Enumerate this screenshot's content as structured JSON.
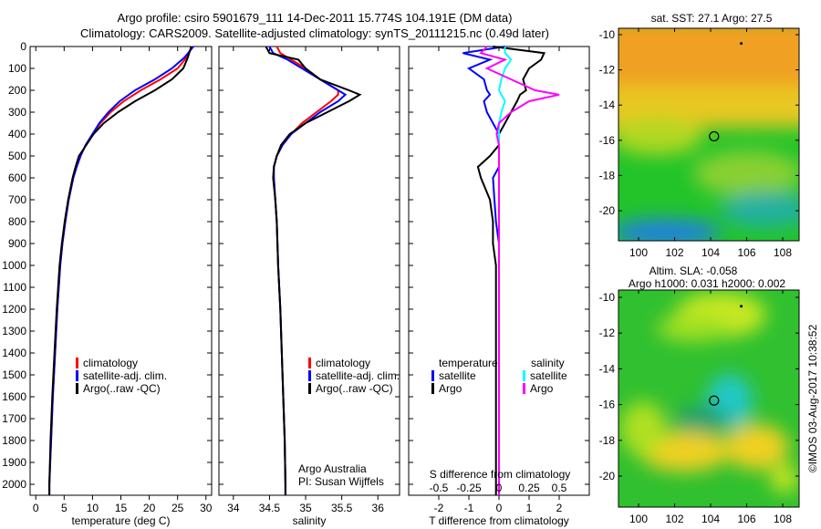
{
  "title_line1": "Argo profile: csiro 5901679_111 14-Dec-2011 15.774S 104.191E (DM data)",
  "title_line2": "Climatology: CARS2009. Satellite-adjusted climatology: synTS_20111215.nc (0.49d later)",
  "colors": {
    "climatology": "#ff0000",
    "satellite": "#0000ff",
    "argo": "#000000",
    "sal_satellite": "#00ffff",
    "sal_argo": "#ff00ff"
  },
  "chart_data": [
    {
      "type": "line",
      "xlabel": "temperature (deg C)",
      "ylabel": "depth",
      "xlim": [
        -1,
        31
      ],
      "ylim": [
        2050,
        0
      ],
      "xticks": [
        "0",
        "5",
        "10",
        "15",
        "20",
        "25",
        "30"
      ],
      "xtick_values": [
        0,
        5,
        10,
        15,
        20,
        25,
        30
      ],
      "yticks": [
        "0",
        "100",
        "200",
        "300",
        "400",
        "500",
        "600",
        "700",
        "800",
        "900",
        "1000",
        "1100",
        "1200",
        "1300",
        "1400",
        "1500",
        "1600",
        "1700",
        "1800",
        "1900",
        "2000"
      ],
      "legend": [
        "climatology",
        "satellite-adj. clim.",
        "Argo(..raw -QC)"
      ],
      "depth": [
        0,
        50,
        100,
        150,
        200,
        250,
        300,
        350,
        400,
        450,
        500,
        550,
        600,
        700,
        800,
        900,
        1000,
        1200,
        1400,
        1600,
        1800,
        2000,
        2050
      ],
      "series": [
        {
          "name": "climatology",
          "color": "#ff0000",
          "values": [
            27.6,
            26.6,
            25,
            22,
            18.5,
            15.5,
            13.2,
            11.4,
            10,
            8.8,
            7.9,
            7.2,
            6.6,
            5.8,
            5.2,
            4.7,
            4.3,
            3.8,
            3.4,
            3.0,
            2.7,
            2.4,
            2.4
          ]
        },
        {
          "name": "satellite-adj. clim.",
          "color": "#0000ff",
          "values": [
            27.8,
            26.2,
            24,
            21,
            17.5,
            14.8,
            12.8,
            11.2,
            10,
            8.8,
            7.9,
            7.2,
            6.6,
            5.8,
            5.2,
            4.7,
            4.3,
            3.8,
            3.4,
            3.0,
            2.7,
            2.4,
            2.4
          ]
        },
        {
          "name": "Argo(..raw -QC)",
          "color": "#000000",
          "values": [
            27.4,
            26.8,
            26,
            24,
            21,
            17.5,
            14.5,
            12,
            10.2,
            8.9,
            7.6,
            7.0,
            6.5,
            5.7,
            5.1,
            4.6,
            4.2,
            3.7,
            3.3,
            2.9,
            2.6,
            2.4,
            2.4
          ]
        }
      ]
    },
    {
      "type": "line",
      "xlabel": "salinity",
      "xlim": [
        33.8,
        36.3
      ],
      "ylim": [
        2050,
        0
      ],
      "xticks": [
        "34",
        "34.5",
        "35",
        "35.5",
        "36"
      ],
      "xtick_values": [
        34,
        34.5,
        35,
        35.5,
        36
      ],
      "legend": [
        "climatology",
        "satellite-adj. clim.",
        "Argo(..raw -QC)"
      ],
      "annotation": [
        "Argo Australia",
        "PI: Susan Wijffels"
      ],
      "depth": [
        0,
        30,
        60,
        100,
        150,
        200,
        220,
        250,
        300,
        350,
        400,
        450,
        500,
        550,
        600,
        700,
        800,
        1000,
        1200,
        1500,
        1800,
        2000,
        2050
      ],
      "series": [
        {
          "name": "climatology",
          "color": "#ff0000",
          "values": [
            34.6,
            34.65,
            34.8,
            35.0,
            35.2,
            35.45,
            35.45,
            35.35,
            35.15,
            34.95,
            34.8,
            34.68,
            34.6,
            34.56,
            34.56,
            34.58,
            34.6,
            34.62,
            34.65,
            34.68,
            34.71,
            34.72,
            34.72
          ]
        },
        {
          "name": "satellite-adj. clim.",
          "color": "#0000ff",
          "values": [
            34.5,
            34.55,
            34.75,
            34.95,
            35.2,
            35.45,
            35.55,
            35.45,
            35.2,
            35.0,
            34.8,
            34.68,
            34.6,
            34.56,
            34.56,
            34.58,
            34.6,
            34.62,
            34.65,
            34.68,
            34.71,
            34.72,
            34.72
          ]
        },
        {
          "name": "Argo(..raw -QC)",
          "color": "#000000",
          "values": [
            34.45,
            34.5,
            34.9,
            35.0,
            35.2,
            35.6,
            35.75,
            35.6,
            35.3,
            35.0,
            34.78,
            34.66,
            34.6,
            34.56,
            34.55,
            34.58,
            34.6,
            34.62,
            34.65,
            34.68,
            34.71,
            34.72,
            34.72
          ]
        }
      ]
    },
    {
      "type": "line",
      "xlabel": "T difference from climatology",
      "x2label": "S difference from climatology",
      "xlim": [
        -3,
        3
      ],
      "x2lim": [
        -0.75,
        0.75
      ],
      "ylim": [
        2050,
        0
      ],
      "xticks": [
        "-2",
        "-1",
        "0",
        "1",
        "2"
      ],
      "xtick_values": [
        -2,
        -1,
        0,
        1,
        2
      ],
      "x2ticks": [
        "-0.5",
        "-0.25",
        "0",
        "0.25",
        "0.5"
      ],
      "x2tick_values": [
        -0.5,
        -0.25,
        0,
        0.25,
        0.5
      ],
      "legend_temperature_title": "temperature",
      "legend_salinity_title": "salinity",
      "legend": [
        "satellite",
        "Argo",
        "satellite",
        "Argo"
      ],
      "depth": [
        0,
        30,
        60,
        100,
        150,
        200,
        220,
        250,
        300,
        350,
        400,
        450,
        500,
        550,
        600,
        700,
        800,
        900,
        1000,
        1200,
        1500,
        1800,
        2000,
        2050
      ],
      "series": [
        {
          "name": "T satellite",
          "axis": "T",
          "color": "#0000ff",
          "values": [
            0.2,
            -1.2,
            -0.3,
            -1.0,
            -0.5,
            -0.4,
            -0.3,
            -0.5,
            -0.4,
            -0.2,
            0,
            0,
            0,
            0,
            -0.2,
            -0.15,
            -0.1,
            0,
            0,
            0,
            0,
            0,
            0,
            0
          ]
        },
        {
          "name": "T Argo",
          "axis": "T",
          "color": "#000000",
          "values": [
            -0.2,
            1.5,
            1.4,
            1.0,
            0.8,
            0.9,
            0.7,
            0.6,
            0.4,
            0.2,
            0,
            0,
            -0.3,
            -0.7,
            -0.6,
            -0.3,
            -0.2,
            -0.2,
            -0.1,
            -0.1,
            -0.1,
            -0.1,
            -0.1,
            -0.1
          ]
        },
        {
          "name": "S satellite",
          "axis": "S",
          "color": "#00ffff",
          "values": [
            0.05,
            0.05,
            0.1,
            0.05,
            0.02,
            0.0,
            0.02,
            0.05,
            0.02,
            0.0,
            0.0,
            0.0,
            0.0,
            0.0,
            0.0,
            0.0,
            0.0,
            0.0,
            0.0,
            0.0,
            0.0,
            0.0,
            0.0,
            0.0
          ]
        },
        {
          "name": "S Argo",
          "axis": "S",
          "color": "#ff00ff",
          "values": [
            -0.1,
            -0.15,
            0.05,
            -0.1,
            0.1,
            0.3,
            0.5,
            0.25,
            0.1,
            0.0,
            -0.02,
            0.0,
            0.0,
            0.0,
            0.0,
            0.0,
            0.0,
            0.0,
            0.0,
            0.0,
            0.0,
            0.0,
            0.0,
            0.0
          ]
        }
      ]
    }
  ],
  "map_sst": {
    "title": "sat. SST: 27.1  Argo: 27.5",
    "yticks": [
      "-10",
      "-12",
      "-14",
      "-16",
      "-18",
      "-20"
    ],
    "xticks": [
      "100",
      "102",
      "104",
      "106",
      "108"
    ],
    "float_lon": 104.191,
    "float_lat": -15.774
  },
  "map_sla": {
    "title1": "Altim. SLA: -0.058",
    "title2": "Argo h1000: 0.031 h2000: 0.002",
    "yticks": [
      "-10",
      "-12",
      "-14",
      "-16",
      "-18",
      "-20"
    ],
    "xticks": [
      "100",
      "102",
      "104",
      "106",
      "108"
    ],
    "float_lon": 104.191,
    "float_lat": -15.774
  },
  "credit": "©IMOS 03-Aug-2017 10:38:52"
}
